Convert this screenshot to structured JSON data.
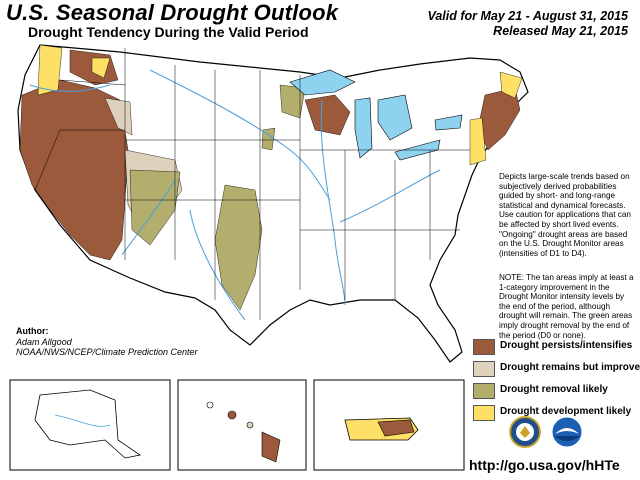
{
  "title": "U.S. Seasonal Drought Outlook",
  "subtitle": "Drought Tendency During the Valid Period",
  "valid_line": "Valid for May 21 - August 31, 2015",
  "released_line": "Released May 21, 2015",
  "description": "Depicts large-scale trends based on subjectively derived probabilities guided by short- and long-range statistical and dynamical forecasts. Use caution for applications that can be affected by short lived events. \"Ongoing\" drought areas are based on the U.S. Drought Monitor areas (intensities of D1 to D4).",
  "note": "NOTE: The tan areas imply at least a 1-category improvement in the Drought Monitor intensity levels by the end of the period, although drought will remain. The green areas imply drought removal by the end of the period (D0 or none).",
  "author": {
    "label": "Author:",
    "name": "Adam Allgood",
    "org": "NOAA/NWS/NCEP/Climate Prediction Center"
  },
  "legend": [
    {
      "label": "Drought persists/intensifies",
      "color": "#9c5a3c"
    },
    {
      "label": "Drought remains but improves",
      "color": "#ded2bc"
    },
    {
      "label": "Drought removal likely",
      "color": "#b4ae6e"
    },
    {
      "label": "Drought development likely",
      "color": "#ffe066"
    }
  ],
  "url": "http://go.usa.gov/hHTe",
  "colors": {
    "water": "#8dd3f0",
    "river": "#4aa0dc",
    "border": "#000000"
  },
  "icons": [
    "doc-seal-icon",
    "noaa-logo-icon"
  ]
}
